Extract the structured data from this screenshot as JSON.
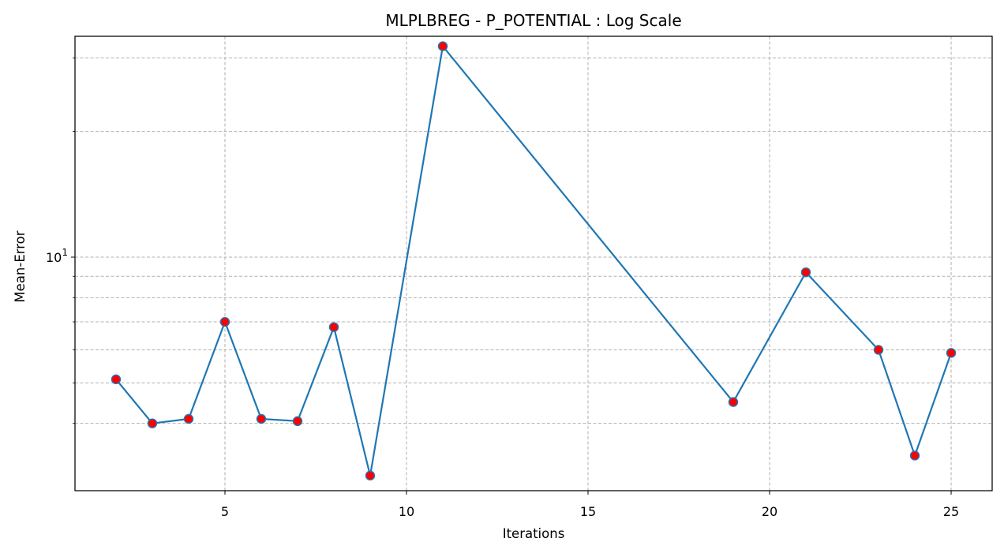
{
  "chart_data": {
    "type": "line",
    "title": "MLPLBREG - P_POTENTIAL : Log Scale",
    "xlabel": "Iterations",
    "ylabel": "Mean-Error",
    "y_scale": "log",
    "grid": true,
    "grid_style": "dashed",
    "xlim": [
      0.87,
      26.13
    ],
    "ylim": [
      2.76,
      33.8
    ],
    "x_ticks": [
      5,
      10,
      15,
      20,
      25
    ],
    "x_tick_labels": [
      "5",
      "10",
      "15",
      "20",
      "25"
    ],
    "y_major_ticks": [
      10
    ],
    "y_major_tick_labels": [
      {
        "base": "10",
        "exp": "1"
      }
    ],
    "y_minor_ticks": [
      4,
      5,
      6,
      7,
      8,
      9,
      20,
      30
    ],
    "series": [
      {
        "line_color": "#1f77b4",
        "marker_face": "#ff0000",
        "marker_edge": "#1f77b4",
        "x": [
          2,
          3,
          4,
          5,
          6,
          7,
          8,
          9,
          11,
          19,
          21,
          23,
          24,
          25
        ],
        "y": [
          5.1,
          4.0,
          4.1,
          7.0,
          4.1,
          4.05,
          6.8,
          3.0,
          32.0,
          4.5,
          9.2,
          6.0,
          3.35,
          5.9
        ]
      }
    ]
  }
}
